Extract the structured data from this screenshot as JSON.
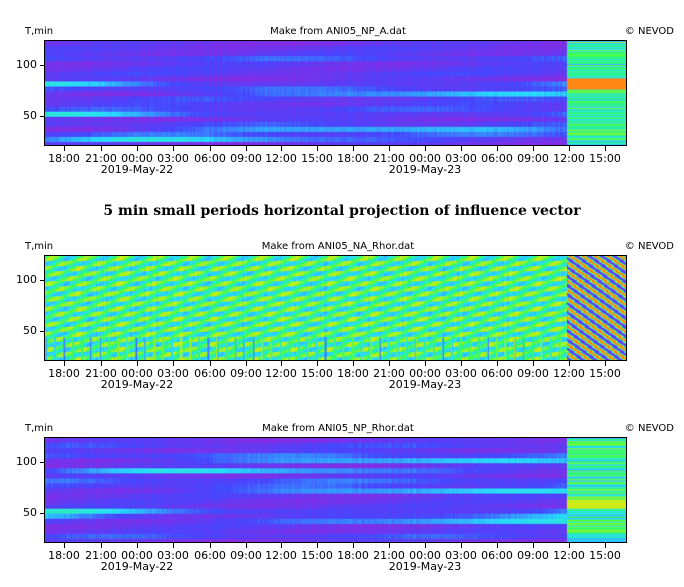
{
  "section_title": "5 min small periods horizontal projection of influence vector",
  "chart_data": [
    {
      "type": "heatmap",
      "title": "Make from ANI05_NP_A.dat",
      "credit": "© NEVOD",
      "ylabel": "T,min",
      "yticks": [
        "100",
        "50"
      ],
      "ytick_values": [
        100,
        50
      ],
      "ylim": [
        20,
        125
      ],
      "xticks": [
        "18:00",
        "21:00",
        "00:00",
        "03:00",
        "06:00",
        "09:00",
        "12:00",
        "15:00",
        "18:00",
        "21:00",
        "00:00",
        "03:00",
        "06:00",
        "09:00",
        "12:00",
        "15:00"
      ],
      "dates": [
        "2019-May-22",
        "2019-May-23"
      ],
      "colormap": "rainbow",
      "palette": {
        "low": "#8a2be2",
        "mid": "#3f7fff",
        "high": "#ff3333"
      },
      "grid": false
    },
    {
      "type": "heatmap",
      "title": "Make from ANI05_NA_Rhor.dat",
      "credit": "© NEVOD",
      "ylabel": "T,min",
      "yticks": [
        "100",
        "50"
      ],
      "ytick_values": [
        100,
        50
      ],
      "ylim": [
        20,
        125
      ],
      "xticks": [
        "18:00",
        "21:00",
        "00:00",
        "03:00",
        "06:00",
        "09:00",
        "12:00",
        "15:00",
        "18:00",
        "21:00",
        "00:00",
        "03:00",
        "06:00",
        "09:00",
        "12:00",
        "15:00"
      ],
      "dates": [
        "2019-May-22",
        "2019-May-23"
      ],
      "colormap": "rainbow",
      "palette": {
        "low": "#3f3fff",
        "mid": "#33ff66",
        "high": "#ffd500"
      },
      "grid": false
    },
    {
      "type": "heatmap",
      "title": "Make from ANI05_NP_Rhor.dat",
      "credit": "© NEVOD",
      "ylabel": "T,min",
      "yticks": [
        "100",
        "50"
      ],
      "ytick_values": [
        100,
        50
      ],
      "ylim": [
        20,
        125
      ],
      "xticks": [
        "18:00",
        "21:00",
        "00:00",
        "03:00",
        "06:00",
        "09:00",
        "12:00",
        "15:00",
        "18:00",
        "21:00",
        "00:00",
        "03:00",
        "06:00",
        "09:00",
        "12:00",
        "15:00"
      ],
      "dates": [
        "2019-May-22",
        "2019-May-23"
      ],
      "colormap": "rainbow",
      "palette": {
        "low": "#8a2be2",
        "mid": "#33ccff",
        "high": "#ffcc00"
      },
      "grid": false
    }
  ]
}
